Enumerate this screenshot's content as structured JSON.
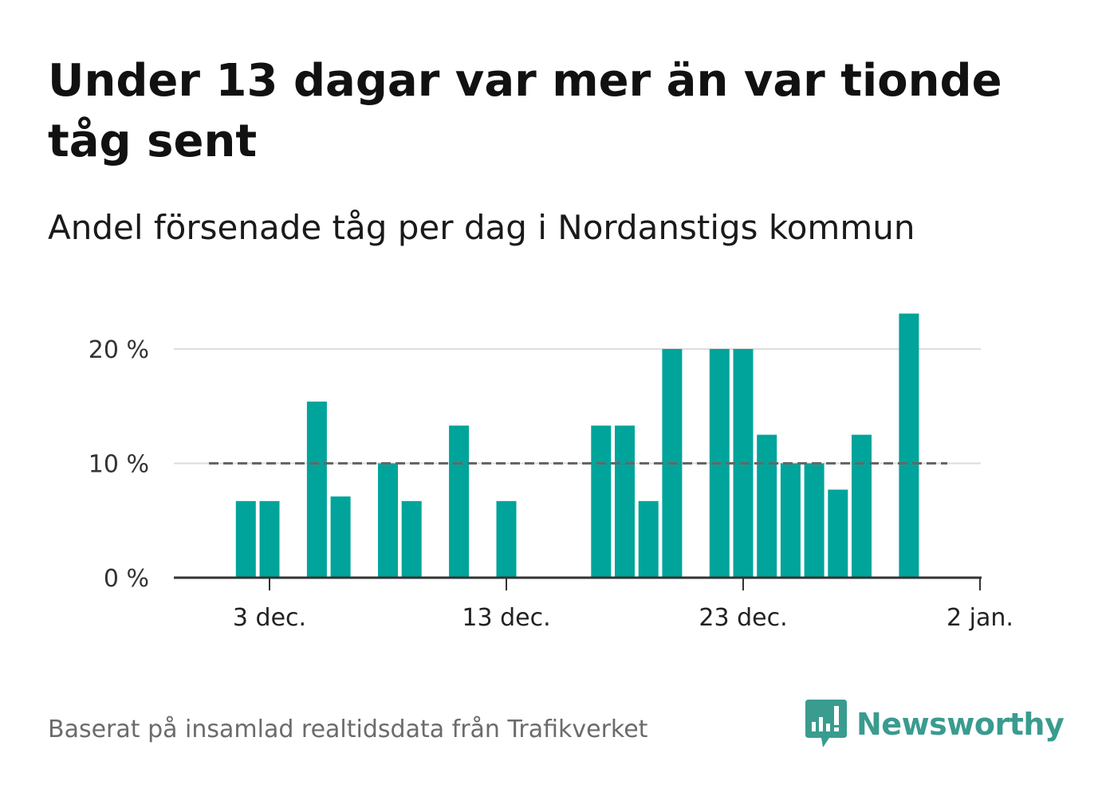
{
  "title": "Under 13 dagar var mer än var tionde tåg sent",
  "subtitle": "Andel försenade tåg per dag i Nordanstigs kommun",
  "footer": {
    "source": "Baserat på insamlad realtidsdata från Trafikverket",
    "brand": "Newsworthy"
  },
  "colors": {
    "bar": "#00a49a",
    "reference_line": "#666666",
    "grid": "#dddddd",
    "axis": "#333333",
    "brand": "#3a9b8f"
  },
  "chart_data": {
    "type": "bar",
    "x_start": "2023-11-29",
    "x_end": "2024-01-02",
    "ylim": [
      0,
      24
    ],
    "y_ticks": [
      {
        "value": 0,
        "label": "0 %"
      },
      {
        "value": 10,
        "label": "10 %"
      },
      {
        "value": 20,
        "label": "20 %"
      }
    ],
    "x_ticks": [
      {
        "date": "2023-12-03",
        "label": "3 dec."
      },
      {
        "date": "2023-12-13",
        "label": "13 dec."
      },
      {
        "date": "2023-12-23",
        "label": "23 dec."
      },
      {
        "date": "2024-01-02",
        "label": "2 jan."
      }
    ],
    "reference_line": {
      "value": 10,
      "style": "dashed"
    },
    "grid": true,
    "bars": [
      {
        "date": "2023-12-02",
        "value": 6.7
      },
      {
        "date": "2023-12-03",
        "value": 6.7
      },
      {
        "date": "2023-12-05",
        "value": 15.4
      },
      {
        "date": "2023-12-06",
        "value": 7.1
      },
      {
        "date": "2023-12-08",
        "value": 10.0
      },
      {
        "date": "2023-12-09",
        "value": 6.7
      },
      {
        "date": "2023-12-11",
        "value": 13.3
      },
      {
        "date": "2023-12-13",
        "value": 6.7
      },
      {
        "date": "2023-12-17",
        "value": 13.3
      },
      {
        "date": "2023-12-18",
        "value": 13.3
      },
      {
        "date": "2023-12-19",
        "value": 6.7
      },
      {
        "date": "2023-12-20",
        "value": 20.0
      },
      {
        "date": "2023-12-22",
        "value": 20.0
      },
      {
        "date": "2023-12-23",
        "value": 20.0
      },
      {
        "date": "2023-12-24",
        "value": 12.5
      },
      {
        "date": "2023-12-25",
        "value": 10.0
      },
      {
        "date": "2023-12-26",
        "value": 10.0
      },
      {
        "date": "2023-12-27",
        "value": 7.7
      },
      {
        "date": "2023-12-28",
        "value": 12.5
      },
      {
        "date": "2023-12-30",
        "value": 23.1
      }
    ]
  }
}
